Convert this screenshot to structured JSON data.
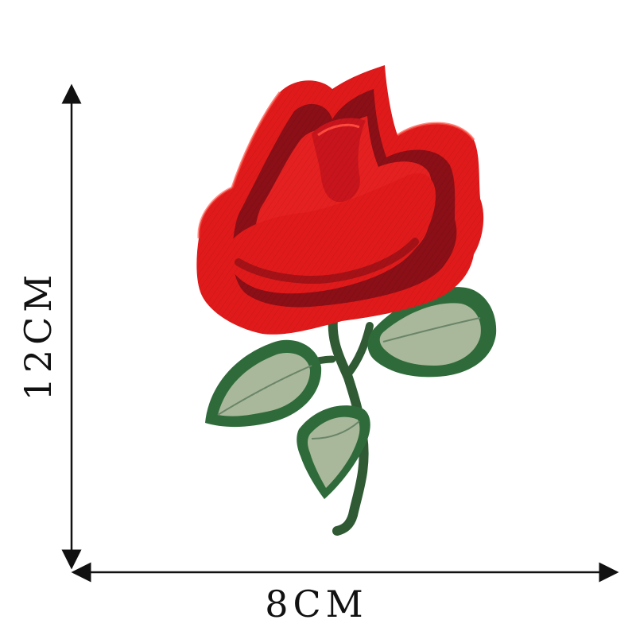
{
  "dimensions": {
    "height_label": "12CM",
    "width_label": "8CM"
  },
  "product": {
    "subject": "rose-embroidery-patch"
  },
  "colors": {
    "background": "#ffffff",
    "petal_red": "#e01a1a",
    "petal_dark": "#8a0f17",
    "leaf_green": "#2f6b3a",
    "leaf_light": "#a9b89a",
    "stem": "#2f5a33",
    "arrow": "#111111"
  }
}
